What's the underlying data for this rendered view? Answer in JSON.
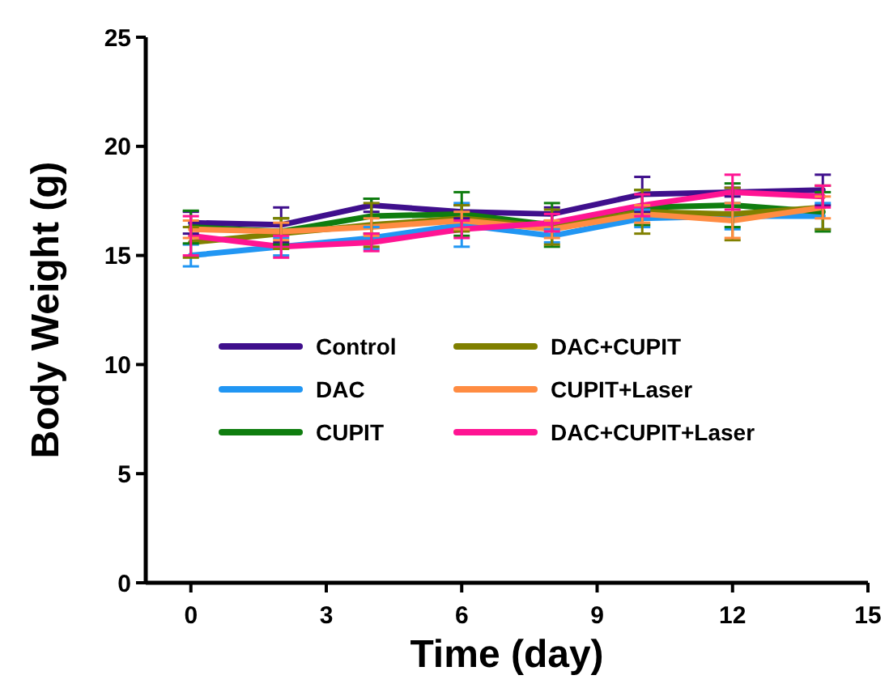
{
  "chart_data": {
    "type": "line",
    "xlabel": "Time (day)",
    "ylabel": "Body Weight (g)",
    "x": [
      0,
      2,
      4,
      6,
      8,
      10,
      12,
      14
    ],
    "xlim": [
      -1,
      15
    ],
    "xticks": [
      0,
      3,
      6,
      9,
      12,
      15
    ],
    "ylim": [
      0,
      25
    ],
    "yticks": [
      0,
      5,
      10,
      15,
      20,
      25
    ],
    "grid": false,
    "legend": "left",
    "series": [
      {
        "name": "Control",
        "color": "#3f0f8c",
        "values": [
          16.5,
          16.4,
          17.3,
          17.0,
          16.9,
          17.8,
          17.9,
          18.0
        ],
        "errors": [
          0.5,
          0.8,
          0.3,
          0.3,
          0.3,
          0.8,
          0.2,
          0.7
        ]
      },
      {
        "name": "DAC",
        "color": "#2196f3",
        "values": [
          15.0,
          15.4,
          15.8,
          16.4,
          15.9,
          16.7,
          16.8,
          16.8
        ],
        "errors": [
          0.5,
          0.4,
          0.5,
          1.0,
          0.3,
          0.4,
          0.6,
          0.6
        ]
      },
      {
        "name": "CUPIT",
        "color": "#0f7d0f",
        "values": [
          16.3,
          16.1,
          16.8,
          16.9,
          16.4,
          17.2,
          17.3,
          17.0
        ],
        "errors": [
          0.75,
          0.6,
          0.8,
          1.0,
          1.0,
          0.8,
          1.0,
          0.9
        ]
      },
      {
        "name": "DAC+CUPIT",
        "color": "#808000",
        "values": [
          15.6,
          16.0,
          16.4,
          16.7,
          16.3,
          17.0,
          16.9,
          17.2
        ],
        "errors": [
          0.7,
          0.7,
          1.0,
          0.6,
          0.8,
          1.0,
          1.2,
          1.0
        ]
      },
      {
        "name": "CUPIT+Laser",
        "color": "#ff8c42",
        "values": [
          16.2,
          16.1,
          16.3,
          16.6,
          16.2,
          16.9,
          16.6,
          17.2
        ],
        "errors": [
          0.4,
          0.4,
          0.4,
          0.4,
          0.4,
          0.4,
          0.8,
          0.5
        ]
      },
      {
        "name": "DAC+CUPIT+Laser",
        "color": "#ff1493",
        "values": [
          15.9,
          15.4,
          15.6,
          16.2,
          16.5,
          17.3,
          17.9,
          17.7
        ],
        "errors": [
          0.9,
          0.5,
          0.4,
          0.4,
          0.4,
          0.5,
          0.8,
          0.5
        ]
      }
    ]
  }
}
